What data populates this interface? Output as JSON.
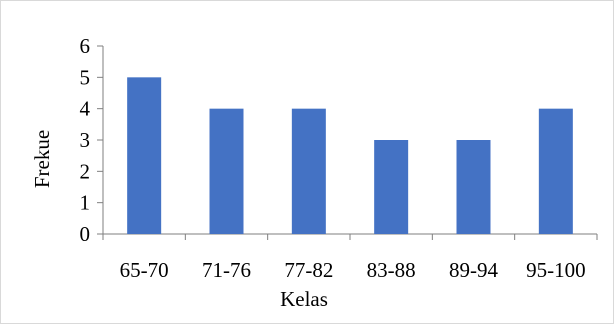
{
  "chart_data": {
    "type": "bar",
    "title": "",
    "xlabel": "Kelas",
    "ylabel": "Frekue",
    "categories": [
      "65-70",
      "71-76",
      "77-82",
      "83-88",
      "89-94",
      "95-100"
    ],
    "values": [
      5,
      4,
      4,
      3,
      3,
      4
    ],
    "ylim": [
      0,
      6
    ],
    "yticks": [
      "0",
      "1",
      "2",
      "3",
      "4",
      "5",
      "6"
    ],
    "grid": false,
    "legend": "none",
    "bar_color": "#4472c4",
    "axis_color": "#7f7f7f"
  }
}
